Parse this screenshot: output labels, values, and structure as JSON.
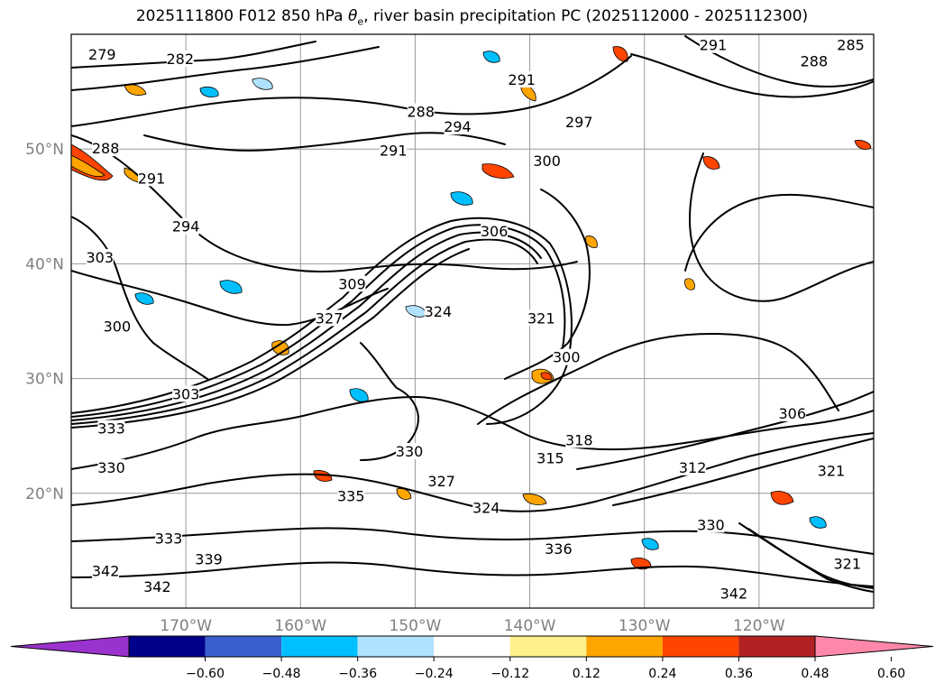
{
  "title": {
    "prefix": "2025111800 F012 850 hPa ",
    "theta_symbol": "θ",
    "theta_subscript": "e",
    "suffix": ", river basin precipitation PC (2025112000 - 2025112300)"
  },
  "map": {
    "projection": "cylindrical",
    "lon_range": [
      -180,
      -110
    ],
    "lat_range": [
      10,
      60
    ],
    "grid": true,
    "grid_lats": [
      20,
      30,
      40,
      50
    ],
    "grid_lons": [
      -170,
      -160,
      -150,
      -140,
      -130,
      -120
    ],
    "lat_ticks": [
      {
        "value": 50,
        "label": "50°N"
      },
      {
        "value": 40,
        "label": "40°N"
      },
      {
        "value": 30,
        "label": "30°N"
      },
      {
        "value": 20,
        "label": "20°N"
      }
    ],
    "lon_ticks": [
      {
        "value": -170,
        "label": "170°W"
      },
      {
        "value": -160,
        "label": "160°W"
      },
      {
        "value": -150,
        "label": "150°W"
      },
      {
        "value": -140,
        "label": "140°W"
      },
      {
        "value": -130,
        "label": "130°W"
      },
      {
        "value": -120,
        "label": "120°W"
      }
    ],
    "contour_labels": [
      {
        "text": "279",
        "lon": -177.3,
        "lat": 58.2
      },
      {
        "text": "282",
        "lon": -170.5,
        "lat": 57.8
      },
      {
        "text": "288",
        "lon": -177.0,
        "lat": 50.0
      },
      {
        "text": "291",
        "lon": -173.0,
        "lat": 47.4
      },
      {
        "text": "294",
        "lon": -170.0,
        "lat": 43.2
      },
      {
        "text": "303",
        "lon": -177.5,
        "lat": 40.5
      },
      {
        "text": "300",
        "lon": -176.0,
        "lat": 34.5
      },
      {
        "text": "303",
        "lon": -170.0,
        "lat": 28.6
      },
      {
        "text": "333",
        "lon": -176.5,
        "lat": 25.6
      },
      {
        "text": "330",
        "lon": -176.5,
        "lat": 22.2
      },
      {
        "text": "342",
        "lon": -177.0,
        "lat": 13.2
      },
      {
        "text": "339",
        "lon": -168.0,
        "lat": 14.2
      },
      {
        "text": "342",
        "lon": -172.5,
        "lat": 11.8
      },
      {
        "text": "333",
        "lon": -171.5,
        "lat": 16.0
      },
      {
        "text": "327",
        "lon": -157.5,
        "lat": 35.2
      },
      {
        "text": "324",
        "lon": -148.0,
        "lat": 35.8
      },
      {
        "text": "309",
        "lon": -155.5,
        "lat": 38.2
      },
      {
        "text": "330",
        "lon": -150.5,
        "lat": 23.6
      },
      {
        "text": "327",
        "lon": -147.7,
        "lat": 21.0
      },
      {
        "text": "335",
        "lon": -155.6,
        "lat": 19.7
      },
      {
        "text": "324",
        "lon": -143.8,
        "lat": 18.7
      },
      {
        "text": "336",
        "lon": -137.5,
        "lat": 15.1
      },
      {
        "text": "318",
        "lon": -135.7,
        "lat": 24.6
      },
      {
        "text": "315",
        "lon": -138.2,
        "lat": 23.0
      },
      {
        "text": "312",
        "lon": -125.8,
        "lat": 22.2
      },
      {
        "text": "330",
        "lon": -124.2,
        "lat": 17.2
      },
      {
        "text": "342",
        "lon": -122.2,
        "lat": 11.2
      },
      {
        "text": "321",
        "lon": -113.7,
        "lat": 21.9
      },
      {
        "text": "321",
        "lon": -112.3,
        "lat": 13.8
      },
      {
        "text": "306",
        "lon": -117.1,
        "lat": 26.9
      },
      {
        "text": "300",
        "lon": -136.8,
        "lat": 31.8
      },
      {
        "text": "321",
        "lon": -139.0,
        "lat": 35.2
      },
      {
        "text": "306",
        "lon": -143.1,
        "lat": 42.8
      },
      {
        "text": "300",
        "lon": -138.5,
        "lat": 48.9
      },
      {
        "text": "297",
        "lon": -135.7,
        "lat": 52.3
      },
      {
        "text": "294",
        "lon": -146.3,
        "lat": 51.9
      },
      {
        "text": "288",
        "lon": -149.5,
        "lat": 53.2
      },
      {
        "text": "291",
        "lon": -151.9,
        "lat": 49.8
      },
      {
        "text": "291",
        "lon": -140.7,
        "lat": 56.0
      },
      {
        "text": "288",
        "lon": -115.2,
        "lat": 57.6
      },
      {
        "text": "291",
        "lon": -124.0,
        "lat": 59.0
      },
      {
        "text": "285",
        "lon": -112.0,
        "lat": 59.0
      }
    ]
  },
  "colorbar": {
    "colors": [
      "#9a32cd",
      "#00008b",
      "#3a5fcd",
      "#00bfff",
      "#b0e2ff",
      "#ffffff",
      "#fff08c",
      "#ffa500",
      "#ff4500",
      "#b22222",
      "#ff88aa"
    ],
    "tick_labels": [
      "−0.60",
      "−0.48",
      "−0.36",
      "−0.24",
      "−0.12",
      "0.12",
      "0.24",
      "0.36",
      "0.48",
      "0.60"
    ],
    "extend": "both"
  }
}
